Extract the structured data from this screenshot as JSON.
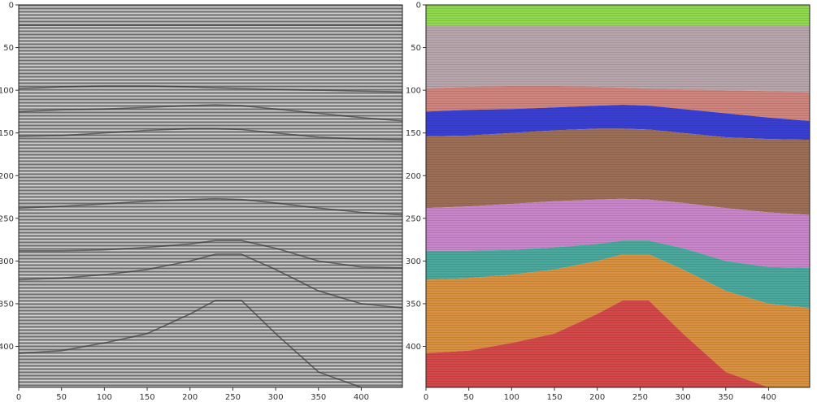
{
  "panels": [
    {
      "name": "seismic-section",
      "kind": "seismic-grayscale",
      "xlim": [
        0,
        448
      ],
      "ylim": [
        448,
        0
      ],
      "xticks": [
        0,
        50,
        100,
        150,
        200,
        250,
        300,
        350,
        400
      ],
      "yticks": [
        0,
        50,
        100,
        150,
        200,
        250,
        300,
        350,
        400
      ],
      "colormap": "gray"
    },
    {
      "name": "facies-overlay",
      "kind": "facies-segmentation",
      "xlim": [
        0,
        448
      ],
      "ylim": [
        448,
        0
      ],
      "xticks": [
        0,
        50,
        100,
        150,
        200,
        250,
        300,
        350,
        400
      ],
      "yticks": [
        0,
        50,
        100,
        150,
        200,
        250,
        300,
        350,
        400
      ],
      "layer_colors": [
        "#8fd94f",
        "#b8a6ad",
        "#cf857d",
        "#3a3fd4",
        "#9c6e55",
        "#c985c9",
        "#4aa99c",
        "#d9913f",
        "#d4484a"
      ]
    }
  ],
  "horizons_depth_at_x": {
    "x": [
      0,
      50,
      100,
      150,
      200,
      230,
      260,
      300,
      350,
      400,
      448
    ],
    "layers": [
      [
        0,
        0,
        0,
        0,
        0,
        0,
        0,
        0,
        0,
        0,
        0
      ],
      [
        24,
        24,
        24,
        24,
        24,
        24,
        24,
        24,
        24,
        24,
        24
      ],
      [
        98,
        96,
        95,
        95,
        96,
        97,
        98,
        99,
        100,
        101,
        102
      ],
      [
        125,
        123,
        122,
        120,
        118,
        117,
        118,
        122,
        127,
        132,
        136
      ],
      [
        154,
        153,
        150,
        147,
        145,
        145,
        146,
        150,
        155,
        157,
        158
      ],
      [
        238,
        236,
        233,
        230,
        228,
        227,
        228,
        232,
        238,
        243,
        246
      ],
      [
        288,
        288,
        287,
        284,
        280,
        276,
        276,
        285,
        300,
        307,
        308
      ],
      [
        322,
        320,
        316,
        310,
        300,
        292,
        292,
        310,
        335,
        350,
        355
      ],
      [
        408,
        405,
        396,
        385,
        362,
        346,
        346,
        385,
        430,
        448,
        448
      ]
    ]
  }
}
